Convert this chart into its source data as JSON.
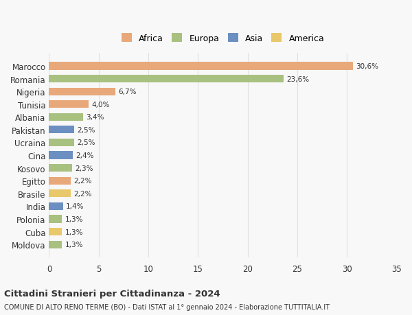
{
  "categories": [
    "Moldova",
    "Cuba",
    "Polonia",
    "India",
    "Brasile",
    "Egitto",
    "Kosovo",
    "Cina",
    "Ucraina",
    "Pakistan",
    "Albania",
    "Tunisia",
    "Nigeria",
    "Romania",
    "Marocco"
  ],
  "values": [
    1.3,
    1.3,
    1.3,
    1.4,
    2.2,
    2.2,
    2.3,
    2.4,
    2.5,
    2.5,
    3.4,
    4.0,
    6.7,
    23.6,
    30.6
  ],
  "labels": [
    "1,3%",
    "1,3%",
    "1,3%",
    "1,4%",
    "2,2%",
    "2,2%",
    "2,3%",
    "2,4%",
    "2,5%",
    "2,5%",
    "3,4%",
    "4,0%",
    "6,7%",
    "23,6%",
    "30,6%"
  ],
  "colors": [
    "#a8c080",
    "#e8c86a",
    "#a8c080",
    "#6b8fc0",
    "#e8c86a",
    "#e8a87a",
    "#a8c080",
    "#6b8fc0",
    "#a8c080",
    "#6b8fc0",
    "#a8c080",
    "#e8a87a",
    "#e8a87a",
    "#a8c080",
    "#e8a87a"
  ],
  "continent_colors": {
    "Africa": "#e8a87a",
    "Europa": "#a8c080",
    "Asia": "#6b8fc0",
    "America": "#e8c86a"
  },
  "xlim": [
    0,
    35
  ],
  "xticks": [
    0,
    5,
    10,
    15,
    20,
    25,
    30,
    35
  ],
  "title": "Cittadini Stranieri per Cittadinanza - 2024",
  "subtitle": "COMUNE DI ALTO RENO TERME (BO) - Dati ISTAT al 1° gennaio 2024 - Elaborazione TUTTITALIA.IT",
  "bg_color": "#f8f8f8",
  "bar_height": 0.6,
  "grid_color": "#e0e0e0",
  "text_color": "#333333"
}
